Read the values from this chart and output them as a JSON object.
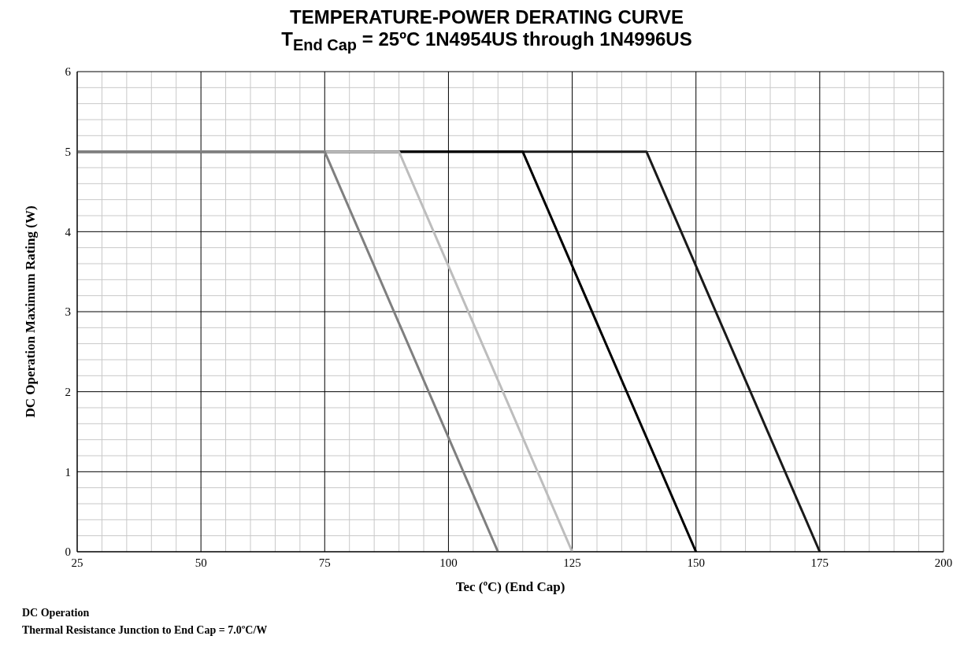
{
  "chart_data": {
    "type": "line",
    "title": "TEMPERATURE-POWER DERATING CURVE",
    "subtitle": "T$_{End Cap}$ = 25ºC  1N4954US through 1N4996US",
    "xlabel": "Tec (ºC)  (End Cap)",
    "ylabel": "DC Operation Maximum Rating (W)",
    "annotations": [
      "DC Operation",
      "Thermal Resistance Junction to End Cap = 7.0ºC/W"
    ],
    "series": [
      {
        "color": "#1a1a1a",
        "x": [
          25,
          140,
          175
        ],
        "values": [
          5,
          5,
          0
        ]
      },
      {
        "color": "#000000",
        "x": [
          25,
          115,
          150
        ],
        "values": [
          5,
          5,
          0
        ]
      },
      {
        "color": "#bdbdbd",
        "x": [
          25,
          90,
          125
        ],
        "values": [
          5,
          5,
          0
        ]
      },
      {
        "color": "#7f7f7f",
        "x": [
          25,
          75,
          110
        ],
        "values": [
          5,
          5,
          0
        ]
      }
    ],
    "xlim": [
      25,
      200
    ],
    "ylim": [
      0,
      6
    ],
    "xticks": [
      25,
      {
        "value": 30,
        "label": null
      },
      {
        "value": 35,
        "label": null
      },
      {
        "value": 40,
        "label": null
      },
      {
        "value": 45,
        "label": null
      },
      50,
      {
        "value": 55,
        "label": null
      },
      {
        "value": 60,
        "label": null
      },
      {
        "value": 65,
        "label": null
      },
      {
        "value": 70,
        "label": null
      },
      75,
      {
        "value": 80,
        "label": null
      },
      {
        "value": 85,
        "label": null
      },
      {
        "value": 90,
        "label": null
      },
      {
        "value": 95,
        "label": null
      },
      100,
      {
        "value": 105,
        "label": null
      },
      {
        "value": 110,
        "label": null
      },
      {
        "value": 115,
        "label": null
      },
      {
        "value": 120,
        "label": null
      },
      125,
      {
        "value": 130,
        "label": null
      },
      {
        "value": 135,
        "label": null
      },
      {
        "value": 140,
        "label": null
      },
      {
        "value": 145,
        "label": null
      },
      150,
      {
        "value": 155,
        "label": null
      },
      {
        "value": 160,
        "label": null
      },
      {
        "value": 165,
        "label": null
      },
      {
        "value": 170,
        "label": null
      },
      175,
      {
        "value": 180,
        "label": null
      },
      {
        "value": 185,
        "label": null
      },
      {
        "value": 190,
        "label": null
      },
      {
        "value": 195,
        "label": null
      },
      200
    ],
    "yticks": [
      0,
      {
        "value": 0.2,
        "label": null
      },
      {
        "value": 0.4,
        "label": null
      },
      {
        "value": 0.6,
        "label": null
      },
      {
        "value": 0.8,
        "label": null
      },
      1,
      {
        "value": 1.2,
        "label": null
      },
      {
        "value": 1.4,
        "label": null
      },
      {
        "value": 1.6,
        "label": null
      },
      {
        "value": 1.8,
        "label": null
      },
      2,
      {
        "value": 2.2,
        "label": null
      },
      {
        "value": 2.4,
        "label": null
      },
      {
        "value": 2.6,
        "label": null
      },
      {
        "value": 2.8,
        "label": null
      },
      3,
      {
        "value": 3.2,
        "label": null
      },
      {
        "value": 3.4,
        "label": null
      },
      {
        "value": 3.6,
        "label": null
      },
      {
        "value": 3.8,
        "label": null
      },
      4,
      {
        "value": 4.2,
        "label": null
      },
      {
        "value": 4.4,
        "label": null
      },
      {
        "value": 4.6,
        "label": null
      },
      {
        "value": 4.8,
        "label": null
      },
      5,
      {
        "value": 5.2,
        "label": null
      },
      {
        "value": 5.4,
        "label": null
      },
      {
        "value": 5.6,
        "label": null
      },
      {
        "value": 5.8,
        "label": null
      },
      6
    ],
    "grid": true,
    "marker": "none",
    "line_style": "solid"
  }
}
